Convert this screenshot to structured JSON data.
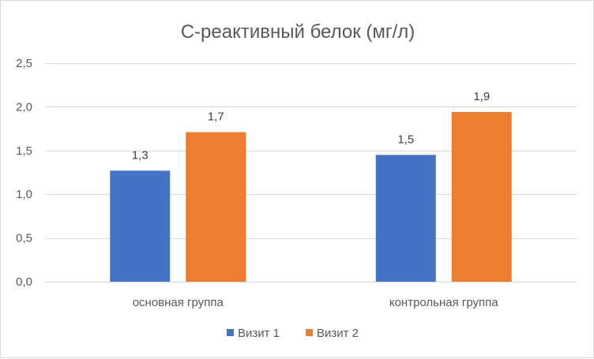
{
  "chart_data": {
    "type": "bar",
    "title": "С-реактивный белок (мг/л)",
    "xlabel": "",
    "ylabel": "",
    "categories": [
      "основная группа",
      "контрольная группа"
    ],
    "series": [
      {
        "name": "Визит 1",
        "values": [
          1.27,
          1.45
        ],
        "labels": [
          "1,3",
          "1,5"
        ],
        "color": "#4472c4"
      },
      {
        "name": "Визит 2",
        "values": [
          1.71,
          1.94
        ],
        "labels": [
          "1,7",
          "1,9"
        ],
        "color": "#ed7d31"
      }
    ],
    "ylim": [
      0,
      2.5
    ],
    "yticks": [
      0,
      0.5,
      1.0,
      1.5,
      2.0,
      2.5
    ],
    "ytick_labels": [
      "0,0",
      "0,5",
      "1,0",
      "1,5",
      "2,0",
      "2,5"
    ],
    "grid": true,
    "legend": "bottom",
    "gridline_color": "#d9d9d9"
  }
}
